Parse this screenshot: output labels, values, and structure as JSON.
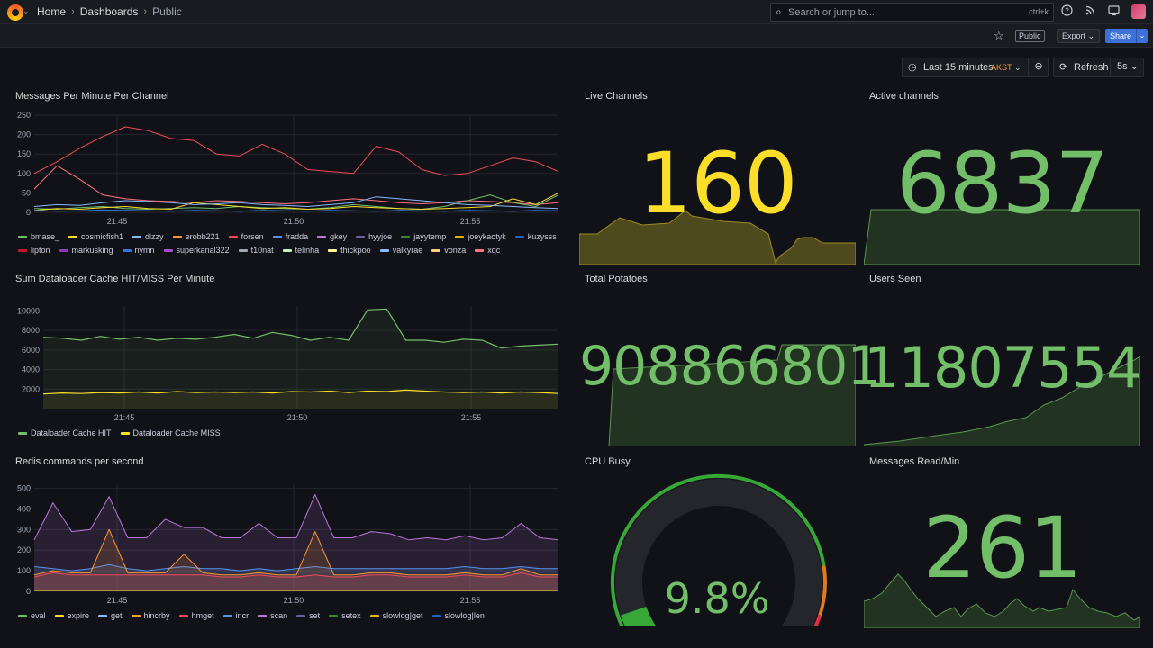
{
  "nav": {
    "breadcrumbs": [
      "Home",
      "Dashboards",
      "Public"
    ],
    "search_placeholder": "Search or jump to...",
    "search_shortcut": "ctrl+k",
    "icons": [
      "help-icon",
      "rss-icon",
      "monitor-icon",
      "avatar"
    ]
  },
  "toolbar": {
    "public_badge": "Public",
    "export_label": "Export",
    "share_label": "Share"
  },
  "timepicker": {
    "range_label": "Last 15 minutes",
    "timezone": "AKST",
    "refresh_label": "Refresh",
    "refresh_interval": "5s"
  },
  "colors": {
    "background": "#111217",
    "stat_yellow": "#fade2a",
    "stat_green": "#73bf69",
    "accent_blue": "#3d71d9",
    "timezone_orange": "#ff9830"
  },
  "panels": {
    "messages_per_minute": {
      "title": "Messages Per Minute Per Channel",
      "legend": [
        {
          "name": "bmase_",
          "color": "#73bf69"
        },
        {
          "name": "cosmicfish1",
          "color": "#fade2a"
        },
        {
          "name": "dizzy",
          "color": "#8ab8ff"
        },
        {
          "name": "erobb221",
          "color": "#ff9830"
        },
        {
          "name": "forsen",
          "color": "#f2495c"
        },
        {
          "name": "fradda",
          "color": "#5794f2"
        },
        {
          "name": "gkey",
          "color": "#b877d9"
        },
        {
          "name": "hyyjoe",
          "color": "#705da0"
        },
        {
          "name": "jayytemp",
          "color": "#37872d"
        },
        {
          "name": "joeykaotyk",
          "color": "#e0b400"
        },
        {
          "name": "kuzysss",
          "color": "#1f60c4"
        },
        {
          "name": "lipton",
          "color": "#c4162a"
        },
        {
          "name": "markusking",
          "color": "#8f3bb8"
        },
        {
          "name": "nymn",
          "color": "#3274d9"
        },
        {
          "name": "superkanal322",
          "color": "#a352cc"
        },
        {
          "name": "t10nat",
          "color": "#9fa7b3"
        },
        {
          "name": "telinha",
          "color": "#c8f2c2"
        },
        {
          "name": "thickpoo",
          "color": "#fff899"
        },
        {
          "name": "valkyrae",
          "color": "#8ab8ff"
        },
        {
          "name": "vonza",
          "color": "#ffcb7d"
        },
        {
          "name": "xqc",
          "color": "#ff7383"
        }
      ]
    },
    "dataloader_cache": {
      "title": "Sum Dataloader Cache HIT/MISS Per Minute",
      "legend": [
        {
          "name": "Dataloader Cache HIT",
          "color": "#73bf69"
        },
        {
          "name": "Dataloader Cache MISS",
          "color": "#fade2a"
        }
      ]
    },
    "redis_commands": {
      "title": "Redis commands per second",
      "legend": [
        {
          "name": "eval",
          "color": "#73bf69"
        },
        {
          "name": "expire",
          "color": "#fade2a"
        },
        {
          "name": "get",
          "color": "#8ab8ff"
        },
        {
          "name": "hincrby",
          "color": "#ff9830"
        },
        {
          "name": "hmget",
          "color": "#f2495c"
        },
        {
          "name": "incr",
          "color": "#5794f2"
        },
        {
          "name": "scan",
          "color": "#b877d9"
        },
        {
          "name": "set",
          "color": "#705da0"
        },
        {
          "name": "setex",
          "color": "#37872d"
        },
        {
          "name": "slowlog|get",
          "color": "#e0b400"
        },
        {
          "name": "slowlog|len",
          "color": "#1f60c4"
        }
      ]
    },
    "live_channels": {
      "title": "Live Channels",
      "value": "160"
    },
    "active_channels": {
      "title": "Active channels",
      "value": "6837"
    },
    "total_potatoes": {
      "title": "Total Potatoes",
      "value": "908866801"
    },
    "users_seen": {
      "title": "Users Seen",
      "value": "11807554"
    },
    "cpu_busy": {
      "title": "CPU Busy",
      "value": "9.8%",
      "percent": 9.8
    },
    "messages_read": {
      "title": "Messages Read/Min",
      "value": "261"
    }
  },
  "chart_data": [
    {
      "type": "line",
      "title": "Messages Per Minute Per Channel",
      "x_ticks": [
        "21:45",
        "21:50",
        "21:55"
      ],
      "ylim": [
        0,
        250
      ],
      "y_ticks": [
        0,
        50,
        100,
        150,
        200,
        250
      ],
      "series": [
        {
          "name": "forsen",
          "values": [
            100,
            130,
            165,
            195,
            220,
            210,
            190,
            185,
            150,
            145,
            175,
            150,
            110,
            105,
            100,
            170,
            155,
            110,
            95,
            100,
            120,
            140,
            130,
            105
          ]
        },
        {
          "name": "xqc",
          "values": [
            60,
            120,
            85,
            45,
            35,
            30,
            28,
            25,
            30,
            28,
            25,
            22,
            25,
            30,
            35,
            30,
            25,
            22,
            25,
            30,
            28,
            25,
            20,
            25
          ]
        },
        {
          "name": "bmase_",
          "values": [
            10,
            8,
            12,
            15,
            10,
            8,
            10,
            12,
            10,
            15,
            12,
            10,
            8,
            12,
            20,
            15,
            10,
            8,
            15,
            30,
            45,
            25,
            15,
            45
          ]
        },
        {
          "name": "cosmicfish1",
          "values": [
            5,
            10,
            8,
            12,
            15,
            10,
            8,
            25,
            20,
            15,
            10,
            12,
            8,
            10,
            15,
            12,
            10,
            8,
            10,
            12,
            15,
            35,
            20,
            50
          ]
        },
        {
          "name": "dizzy",
          "values": [
            15,
            20,
            18,
            25,
            30,
            28,
            25,
            20,
            22,
            25,
            20,
            18,
            15,
            20,
            25,
            40,
            35,
            30,
            25,
            20,
            18,
            15,
            12,
            10
          ]
        },
        {
          "name": "nymn",
          "values": [
            5,
            3,
            4,
            6,
            5,
            4,
            3,
            5,
            4,
            3,
            5,
            4,
            3,
            5,
            4,
            3,
            5,
            4,
            3,
            5,
            4,
            3,
            5,
            4
          ]
        }
      ]
    },
    {
      "type": "line",
      "title": "Sum Dataloader Cache HIT/MISS Per Minute",
      "x_ticks": [
        "21:45",
        "21:50",
        "21:55"
      ],
      "ylim": [
        0,
        10500
      ],
      "y_ticks": [
        2000,
        4000,
        6000,
        8000,
        10000
      ],
      "series": [
        {
          "name": "Dataloader Cache HIT",
          "values": [
            7300,
            7200,
            7000,
            7400,
            7100,
            7300,
            7000,
            7200,
            7100,
            7300,
            7600,
            7200,
            7800,
            7500,
            7000,
            7300,
            7000,
            10100,
            10200,
            7000,
            7000,
            6800,
            7100,
            7000,
            6200,
            6400,
            6500,
            6600
          ]
        },
        {
          "name": "Dataloader Cache MISS",
          "values": [
            1500,
            1600,
            1550,
            1650,
            1600,
            1700,
            1600,
            1750,
            1650,
            1700,
            1650,
            1700,
            1600,
            1750,
            1700,
            1800,
            1650,
            1800,
            1750,
            1900,
            1800,
            1700,
            1650,
            1700,
            1600,
            1700,
            1650,
            1550
          ]
        }
      ]
    },
    {
      "type": "area",
      "title": "Redis commands per second",
      "x_ticks": [
        "21:45",
        "21:50",
        "21:55"
      ],
      "ylim": [
        0,
        520
      ],
      "y_ticks": [
        0,
        100,
        200,
        300,
        400,
        500
      ],
      "series": [
        {
          "name": "scan",
          "values": [
            250,
            430,
            290,
            300,
            460,
            260,
            260,
            350,
            310,
            310,
            260,
            260,
            330,
            260,
            260,
            470,
            260,
            260,
            290,
            280,
            250,
            260,
            250,
            270,
            250,
            260,
            330,
            260,
            250
          ]
        },
        {
          "name": "incr",
          "values": [
            120,
            110,
            100,
            110,
            130,
            110,
            100,
            110,
            120,
            110,
            110,
            100,
            110,
            100,
            110,
            120,
            110,
            110,
            110,
            110,
            110,
            110,
            110,
            120,
            110,
            110,
            120,
            110,
            110
          ]
        },
        {
          "name": "hincrby",
          "values": [
            80,
            100,
            90,
            90,
            300,
            90,
            90,
            90,
            180,
            90,
            80,
            80,
            90,
            80,
            80,
            290,
            80,
            80,
            90,
            90,
            80,
            80,
            80,
            90,
            80,
            80,
            110,
            80,
            80
          ]
        },
        {
          "name": "hmget",
          "values": [
            70,
            90,
            80,
            80,
            80,
            80,
            80,
            80,
            80,
            80,
            70,
            70,
            80,
            70,
            70,
            80,
            70,
            70,
            80,
            80,
            70,
            70,
            70,
            80,
            70,
            70,
            90,
            70,
            70
          ]
        },
        {
          "name": "expire",
          "values": [
            5,
            5,
            5,
            5,
            5,
            5,
            5,
            5,
            5,
            5,
            5,
            5,
            5,
            5,
            5,
            5,
            5,
            5,
            5,
            5,
            5,
            5,
            5,
            5,
            5,
            5,
            5,
            5,
            5
          ]
        }
      ]
    }
  ]
}
